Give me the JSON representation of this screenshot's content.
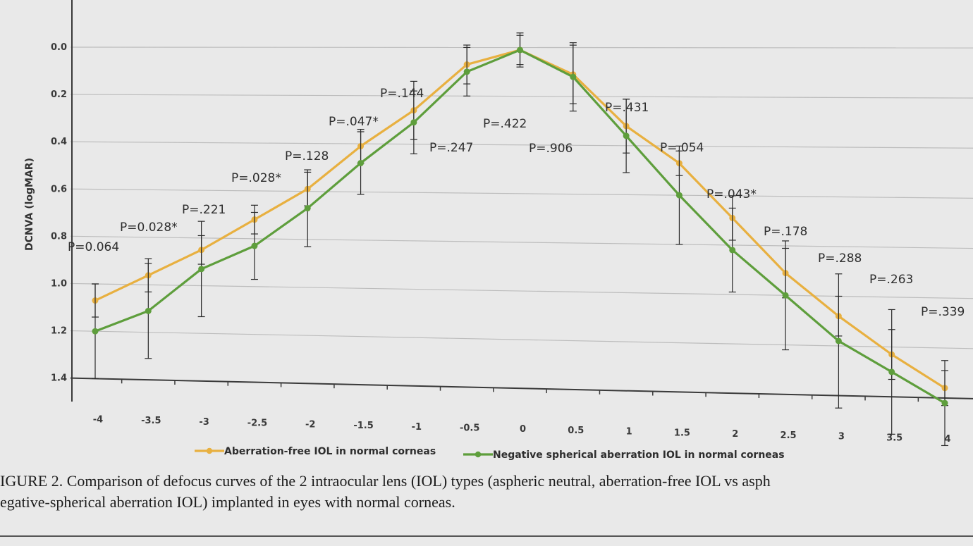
{
  "chart_data": {
    "type": "line",
    "title": "",
    "xlabel": "",
    "ylabel": "DCNVA (logMAR)",
    "x": [
      -4,
      -3.5,
      -3,
      -2.5,
      -2,
      -1.5,
      -1,
      -0.5,
      0,
      0.5,
      1,
      1.5,
      2,
      2.5,
      3,
      3.5,
      4
    ],
    "x_tick_labels": [
      "-4",
      "-3.5",
      "-3",
      "-2.5",
      "-2",
      "-1.5",
      "-1",
      "-0.5",
      "0",
      "0.5",
      "1",
      "1.5",
      "2",
      "2.5",
      "3",
      "3.5",
      "4"
    ],
    "y_tick_labels": [
      "0.0",
      "0.2",
      "0.4",
      "0.6",
      "0.8",
      "1.0",
      "1.2",
      "1.4"
    ],
    "y_ticks": [
      0.0,
      0.2,
      0.4,
      0.6,
      0.8,
      1.0,
      1.2,
      1.4
    ],
    "ylim": [
      -0.2,
      1.4
    ],
    "y_inverted": true,
    "grid": true,
    "legend_position": "bottom",
    "series": [
      {
        "name": "Aberration-free IOL in normal corneas",
        "color": "#e8b040",
        "values": [
          1.07,
          0.96,
          0.85,
          0.72,
          0.59,
          0.41,
          0.26,
          0.07,
          0.01,
          0.11,
          0.32,
          0.47,
          0.69,
          0.91,
          1.08,
          1.23,
          1.36
        ],
        "error": [
          0.07,
          0.07,
          0.06,
          0.06,
          0.07,
          0.07,
          0.12,
          0.08,
          0.06,
          0.12,
          0.11,
          0.05,
          0.09,
          0.1,
          0.08,
          0.1,
          0.07
        ]
      },
      {
        "name": "Negative spherical aberration IOL in normal corneas",
        "color": "#5e9e3c",
        "values": [
          1.2,
          1.11,
          0.93,
          0.83,
          0.67,
          0.48,
          0.31,
          0.1,
          0.01,
          0.12,
          0.36,
          0.6,
          0.82,
          1.0,
          1.18,
          1.3,
          1.42
        ],
        "error": [
          0.2,
          0.2,
          0.2,
          0.14,
          0.16,
          0.13,
          0.13,
          0.1,
          0.07,
          0.14,
          0.15,
          0.2,
          0.17,
          0.22,
          0.27,
          0.25,
          0.17
        ]
      }
    ],
    "annotations": [
      "P=0.064",
      "P=0.028*",
      "P=.221",
      "P=.028*",
      "P=.128",
      "P=.047*",
      "P=.144",
      "P=.247",
      "P=.422",
      "P=.906",
      "P=.431",
      "P=.054",
      "P=.043*",
      "P=.178",
      "P=.288",
      "P=.263",
      "P=.339"
    ]
  },
  "caption": {
    "line1": "IGURE 2. Comparison of defocus curves of the 2 intraocular lens (IOL) types (aspheric neutral, aberration-free IOL vs asph",
    "line2": "egative-spherical aberration IOL) implanted in eyes with normal corneas."
  }
}
